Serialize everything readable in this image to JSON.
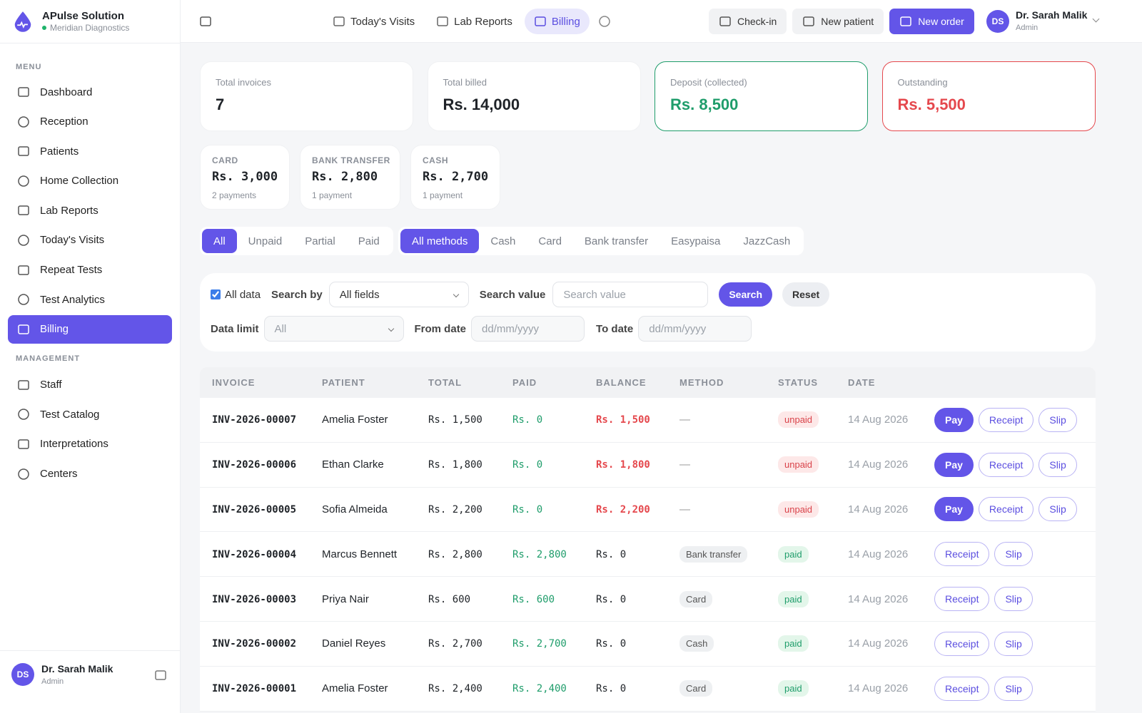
{
  "brand": {
    "name": "APulse Solution",
    "subtitle": "Meridian Diagnostics"
  },
  "sidebar": {
    "sections": [
      {
        "label": "MENU",
        "items": [
          {
            "label": "Dashboard"
          },
          {
            "label": "Reception"
          },
          {
            "label": "Patients"
          },
          {
            "label": "Home Collection"
          },
          {
            "label": "Lab Reports"
          },
          {
            "label": "Today's Visits"
          },
          {
            "label": "Repeat Tests"
          },
          {
            "label": "Test Analytics"
          },
          {
            "label": "Billing",
            "active": true
          }
        ]
      },
      {
        "label": "MANAGEMENT",
        "items": [
          {
            "label": "Staff"
          },
          {
            "label": "Test Catalog"
          },
          {
            "label": "Interpretations"
          },
          {
            "label": "Centers"
          }
        ]
      }
    ],
    "user": {
      "initials": "DS",
      "name": "Dr. Sarah Malik",
      "role": "Admin"
    }
  },
  "topbar": {
    "tabs": [
      {
        "label": "Today's Visits"
      },
      {
        "label": "Lab Reports"
      },
      {
        "label": "Billing",
        "active": true
      }
    ],
    "actions": [
      {
        "label": "Check-in"
      },
      {
        "label": "New patient"
      },
      {
        "label": "New order",
        "primary": true
      }
    ],
    "user": {
      "initials": "DS",
      "name": "Dr. Sarah Malik",
      "role": "Admin"
    }
  },
  "summary": [
    {
      "label": "Total invoices",
      "value": 7
    },
    {
      "label": "Total billed",
      "value": "Rs. 14,000"
    },
    {
      "label": "Deposit (collected)",
      "value": "Rs. 8,500",
      "color": "#1f9d6b"
    },
    {
      "label": "Outstanding",
      "value": "Rs. 5,500",
      "color": "#e5484d"
    }
  ],
  "methods": [
    {
      "label": "CARD",
      "amount": "Rs. 3,000",
      "count": "2 payments"
    },
    {
      "label": "BANK TRANSFER",
      "amount": "Rs. 2,800",
      "count": "1 payment"
    },
    {
      "label": "CASH",
      "amount": "Rs. 2,700",
      "count": "1 payment"
    }
  ],
  "status_filters": [
    {
      "label": "All",
      "active": true
    },
    {
      "label": "Unpaid"
    },
    {
      "label": "Partial"
    },
    {
      "label": "Paid"
    }
  ],
  "method_filters": [
    {
      "label": "All methods",
      "active": true
    },
    {
      "label": "Cash"
    },
    {
      "label": "Card"
    },
    {
      "label": "Bank transfer"
    },
    {
      "label": "Easypaisa"
    },
    {
      "label": "JazzCash"
    }
  ],
  "filters": {
    "all_data": "All data",
    "search_by": "Search by",
    "search_by_value": "All fields",
    "search_value": "Search value",
    "search_placeholder": "Search value",
    "search": "Search",
    "reset": "Reset",
    "data_limit": "Data limit",
    "data_limit_value": "All",
    "from_date": "From date",
    "from_placeholder": "dd/mm/yyyy",
    "to_date": "To date",
    "to_placeholder": "dd/mm/yyyy"
  },
  "table": {
    "columns": [
      "INVOICE",
      "PATIENT",
      "TOTAL",
      "PAID",
      "BALANCE",
      "METHOD",
      "STATUS",
      "DATE"
    ],
    "rows": [
      {
        "cells": [
          "INV-2026-00007",
          "Amelia Foster",
          "Rs. 1,500",
          "Rs. 0",
          "Rs. 1,500",
          "—",
          "unpaid",
          "14 Aug 2026"
        ],
        "actions": [
          "Pay",
          "Receipt",
          "Slip"
        ]
      },
      {
        "cells": [
          "INV-2026-00006",
          "Ethan Clarke",
          "Rs. 1,800",
          "Rs. 0",
          "Rs. 1,800",
          "—",
          "unpaid",
          "14 Aug 2026"
        ],
        "actions": [
          "Pay",
          "Receipt",
          "Slip"
        ]
      },
      {
        "cells": [
          "INV-2026-00005",
          "Sofia Almeida",
          "Rs. 2,200",
          "Rs. 0",
          "Rs. 2,200",
          "—",
          "unpaid",
          "14 Aug 2026"
        ],
        "actions": [
          "Pay",
          "Receipt",
          "Slip"
        ]
      },
      {
        "cells": [
          "INV-2026-00004",
          "Marcus Bennett",
          "Rs. 2,800",
          "Rs. 2,800",
          "Rs. 0",
          "Bank transfer",
          "paid",
          "14 Aug 2026"
        ],
        "actions": [
          "Receipt",
          "Slip"
        ]
      },
      {
        "cells": [
          "INV-2026-00003",
          "Priya Nair",
          "Rs. 600",
          "Rs. 600",
          "Rs. 0",
          "Card",
          "paid",
          "14 Aug 2026"
        ],
        "actions": [
          "Receipt",
          "Slip"
        ]
      },
      {
        "cells": [
          "INV-2026-00002",
          "Daniel Reyes",
          "Rs. 2,700",
          "Rs. 2,700",
          "Rs. 0",
          "Cash",
          "paid",
          "14 Aug 2026"
        ],
        "actions": [
          "Receipt",
          "Slip"
        ]
      },
      {
        "cells": [
          "INV-2026-00001",
          "Amelia Foster",
          "Rs. 2,400",
          "Rs. 2,400",
          "Rs. 0",
          "Card",
          "paid",
          "14 Aug 2026"
        ],
        "actions": [
          "Receipt",
          "Slip"
        ]
      }
    ]
  }
}
